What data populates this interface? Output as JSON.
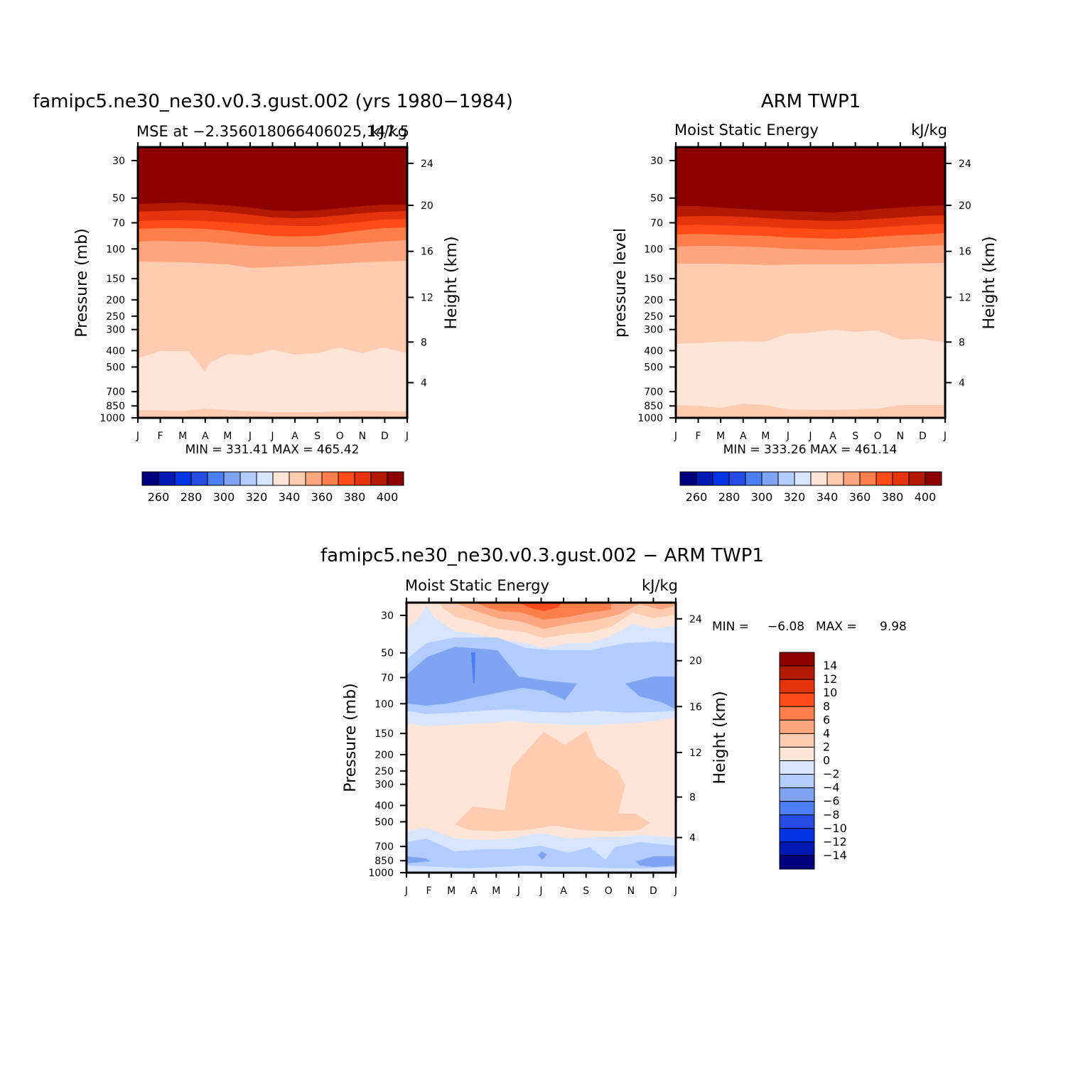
{
  "colors": {
    "mse_levels": [
      "#00007f",
      "#0019b2",
      "#0033e5",
      "#264ce5",
      "#4c7ff2",
      "#7fa5f2",
      "#b2ccff",
      "#d8e5ff",
      "#ffe5d8",
      "#ffccb2",
      "#ffa57f",
      "#ff7f4c",
      "#ff4c19",
      "#e5330d",
      "#b21900",
      "#8c0000"
    ],
    "diff_levels": [
      "#00007f",
      "#0019b2",
      "#0033e5",
      "#264ce5",
      "#4c7ff2",
      "#7fa5f2",
      "#b2ccff",
      "#d8e5ff",
      "#ffe5d8",
      "#ffccb2",
      "#ffa57f",
      "#ff7f4c",
      "#ff4c19",
      "#e5330d",
      "#b21900",
      "#8c0000"
    ]
  },
  "chart_data": [
    {
      "type": "heatmap",
      "title": "famipc5.ne30_ne30.v0.3.gust.002 (yrs 1980−1984)",
      "subtitle_left": "MSE at −2.356018066406025,147.5",
      "subtitle_right": "kJ/kg",
      "ylabel": "Pressure (mb)",
      "y2label": "Height (km)",
      "x_ticks": [
        "J",
        "F",
        "M",
        "A",
        "M",
        "J",
        "J",
        "A",
        "S",
        "O",
        "N",
        "D",
        "J"
      ],
      "y_ticks": [
        "30",
        "50",
        "70",
        "100",
        "150",
        "200",
        "250",
        "300",
        "400",
        "500",
        "700",
        "850",
        "1000"
      ],
      "y_ticks_values": [
        30,
        50,
        70,
        100,
        150,
        200,
        250,
        300,
        400,
        500,
        700,
        850,
        1000
      ],
      "y2_ticks": [
        "24",
        "20",
        "16",
        "12",
        "8",
        "4"
      ],
      "stats": "MIN = 331.41 MAX = 465.42",
      "colorbar_labels": [
        "260",
        "280",
        "300",
        "320",
        "340",
        "360",
        "380",
        "400"
      ],
      "contour_levels": [
        250,
        260,
        270,
        280,
        290,
        300,
        310,
        320,
        330,
        340,
        350,
        360,
        370,
        380,
        390,
        400
      ]
    },
    {
      "type": "heatmap",
      "title": "ARM TWP1",
      "subtitle_left": "Moist Static Energy",
      "subtitle_right": "kJ/kg",
      "ylabel": "pressure level",
      "y2label": "Height (km)",
      "x_ticks": [
        "J",
        "F",
        "M",
        "A",
        "M",
        "J",
        "J",
        "A",
        "S",
        "O",
        "N",
        "D",
        "J"
      ],
      "y_ticks": [
        "30",
        "50",
        "70",
        "100",
        "150",
        "200",
        "250",
        "300",
        "400",
        "500",
        "700",
        "850",
        "1000"
      ],
      "y_ticks_values": [
        30,
        50,
        70,
        100,
        150,
        200,
        250,
        300,
        400,
        500,
        700,
        850,
        1000
      ],
      "y2_ticks": [
        "24",
        "20",
        "16",
        "12",
        "8",
        "4"
      ],
      "stats": "MIN = 333.26 MAX = 461.14",
      "colorbar_labels": [
        "260",
        "280",
        "300",
        "320",
        "340",
        "360",
        "380",
        "400"
      ],
      "contour_levels": [
        250,
        260,
        270,
        280,
        290,
        300,
        310,
        320,
        330,
        340,
        350,
        360,
        370,
        380,
        390,
        400
      ]
    },
    {
      "type": "heatmap",
      "title": "famipc5.ne30_ne30.v0.3.gust.002 − ARM TWP1",
      "subtitle_left": "Moist Static Energy",
      "subtitle_right": "kJ/kg",
      "ylabel": "Pressure (mb)",
      "y2label": "Height (km)",
      "x_ticks": [
        "J",
        "F",
        "M",
        "A",
        "M",
        "J",
        "J",
        "A",
        "S",
        "O",
        "N",
        "D",
        "J"
      ],
      "y_ticks": [
        "30",
        "50",
        "70",
        "100",
        "150",
        "200",
        "250",
        "300",
        "400",
        "500",
        "700",
        "850",
        "1000"
      ],
      "y_ticks_values": [
        30,
        50,
        70,
        100,
        150,
        200,
        250,
        300,
        400,
        500,
        700,
        850,
        1000
      ],
      "y2_ticks": [
        "24",
        "20",
        "16",
        "12",
        "8",
        "4"
      ],
      "stats_label_min": "MIN =",
      "stats_min": "−6.08",
      "stats_label_max": "MAX =",
      "stats_max": "9.98",
      "colorbar_labels": [
        "14",
        "12",
        "10",
        "8",
        "6",
        "4",
        "2",
        "0",
        "−2",
        "−4",
        "−6",
        "−8",
        "−10",
        "−12",
        "−14"
      ],
      "contour_levels": [
        -14,
        -12,
        -10,
        -8,
        -6,
        -4,
        -2,
        0,
        2,
        4,
        6,
        8,
        10,
        12,
        14
      ]
    }
  ]
}
